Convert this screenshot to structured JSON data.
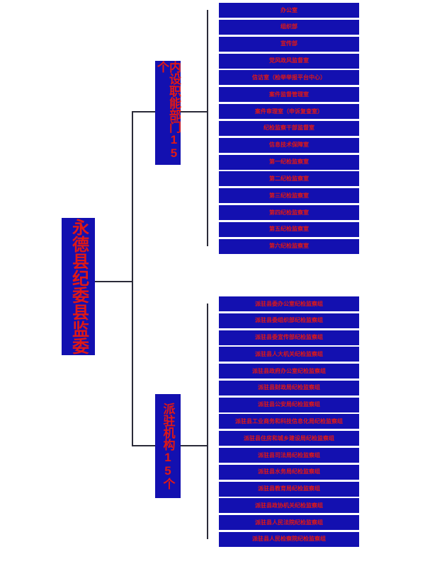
{
  "colors": {
    "box_bg": "#1310b0",
    "text_red": "#e21814",
    "line": "#2b2b38",
    "page_bg": "#ffffff"
  },
  "root": {
    "label": "永德县纪委县监委"
  },
  "branches": [
    {
      "label": "内设职能部门15个",
      "children": [
        "办公室",
        "组织部",
        "宣传部",
        "党风政风监督室",
        "信访室（检举举报平台中心）",
        "案件监督管理室",
        "案件审理室（申诉复查室）",
        "纪检监察干部监督室",
        "信息技术保障室",
        "第一纪检监察室",
        "第二纪检监察室",
        "第三纪检监察室",
        "第四纪检监察室",
        "第五纪检监察室",
        "第六纪检监察室"
      ]
    },
    {
      "label": "派驻机构15个",
      "children": [
        "派驻县委办公室纪检监察组",
        "派驻县委组织部纪检监察组",
        "派驻县委宣传部纪检监察组",
        "派驻县人大机关纪检监察组",
        "派驻县政府办公室纪检监察组",
        "派驻县财政局纪检监察组",
        "派驻县公安局纪检监察组",
        "派驻县工业商务和科技信息化局纪检监察组",
        "派驻县住房和城乡建设局纪检监察组",
        "派驻县司法局纪检监察组",
        "派驻县水务局纪检监察组",
        "派驻县教育局纪检监察组",
        "派驻县政协机关纪检监察组",
        "派驻县人民法院纪检监察组",
        "派驻县人民检察院纪检监察组"
      ]
    }
  ]
}
